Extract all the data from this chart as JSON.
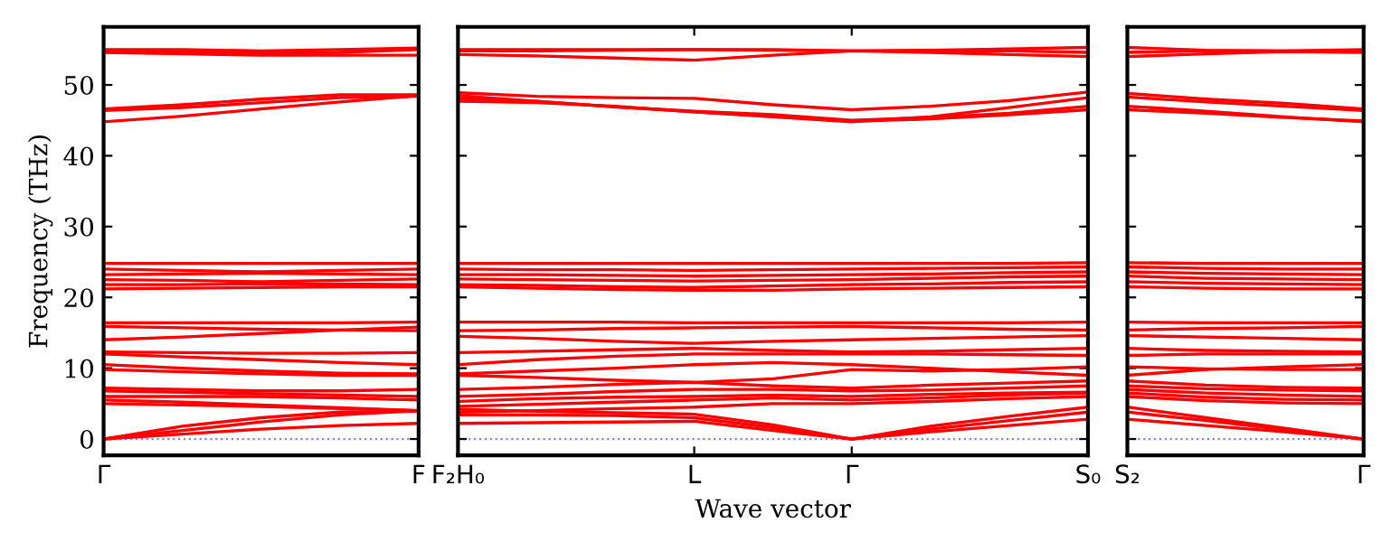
{
  "chart_data": [
    {
      "type": "line",
      "ylabel": "Frequency (THz)",
      "ylim": [
        -2.3,
        58.2
      ],
      "yticks": [
        0,
        10,
        20,
        30,
        40,
        50
      ],
      "tick_labels": "xy",
      "categories": [
        "Γ",
        null,
        null,
        null,
        "F"
      ],
      "ref_lines": [
        {
          "axis": "y",
          "value": 0,
          "color": "#8080ff",
          "line_style": "dotted"
        }
      ],
      "series": [
        {
          "color": "#ff0000",
          "values": [
            55.0,
            55.0,
            54.8,
            55.0,
            55.2
          ]
        },
        {
          "color": "#ff0000",
          "values": [
            54.6,
            54.4,
            54.2,
            54.2,
            54.2
          ]
        },
        {
          "color": "#ff0000",
          "values": [
            54.8,
            54.7,
            54.5,
            54.6,
            55.0
          ]
        },
        {
          "color": "#ff0000",
          "values": [
            46.6,
            47.2,
            48.0,
            48.6,
            48.6
          ]
        },
        {
          "color": "#ff0000",
          "values": [
            46.4,
            46.8,
            47.5,
            48.2,
            48.4
          ]
        },
        {
          "color": "#ff0000",
          "values": [
            44.8,
            45.6,
            46.6,
            47.6,
            48.5
          ]
        },
        {
          "color": "#ff0000",
          "values": [
            24.8,
            24.8,
            24.8,
            24.8,
            24.8
          ]
        },
        {
          "color": "#ff0000",
          "values": [
            24.0,
            23.8,
            23.6,
            23.8,
            24.0
          ]
        },
        {
          "color": "#ff0000",
          "values": [
            23.2,
            23.3,
            23.4,
            23.3,
            23.2
          ]
        },
        {
          "color": "#ff0000",
          "values": [
            22.5,
            22.4,
            22.2,
            22.4,
            22.6
          ]
        },
        {
          "color": "#ff0000",
          "values": [
            21.8,
            21.8,
            21.9,
            21.9,
            21.8
          ]
        },
        {
          "color": "#ff0000",
          "values": [
            21.2,
            21.3,
            21.4,
            21.5,
            21.5
          ]
        },
        {
          "color": "#ff0000",
          "values": [
            16.4,
            16.4,
            16.4,
            16.4,
            16.5
          ]
        },
        {
          "color": "#ff0000",
          "values": [
            15.9,
            15.7,
            15.5,
            15.4,
            15.3
          ]
        },
        {
          "color": "#ff0000",
          "values": [
            14.0,
            14.4,
            14.9,
            15.4,
            15.8
          ]
        },
        {
          "color": "#ff0000",
          "values": [
            12.3,
            12.2,
            12.1,
            12.1,
            12.2
          ]
        },
        {
          "color": "#ff0000",
          "values": [
            12.0,
            11.6,
            11.2,
            10.8,
            10.5
          ]
        },
        {
          "color": "#ff0000",
          "values": [
            10.5,
            10.0,
            9.6,
            9.3,
            9.2
          ]
        },
        {
          "color": "#ff0000",
          "values": [
            9.8,
            9.5,
            9.2,
            9.0,
            9.0
          ]
        },
        {
          "color": "#ff0000",
          "values": [
            7.2,
            7.0,
            6.8,
            6.8,
            7.0
          ]
        },
        {
          "color": "#ff0000",
          "values": [
            6.8,
            6.6,
            6.4,
            6.2,
            6.0
          ]
        },
        {
          "color": "#ff0000",
          "values": [
            6.0,
            6.0,
            6.0,
            5.8,
            5.5
          ]
        },
        {
          "color": "#ff0000",
          "values": [
            5.5,
            5.2,
            4.8,
            4.4,
            4.0
          ]
        },
        {
          "color": "#ff0000",
          "values": [
            5.0,
            4.8,
            4.6,
            4.3,
            4.0
          ]
        },
        {
          "color": "#ff0000",
          "values": [
            0,
            1.2,
            2.4,
            3.4,
            4.0
          ]
        },
        {
          "color": "#ff0000",
          "values": [
            0,
            1.8,
            3.0,
            3.8,
            3.9
          ]
        },
        {
          "color": "#ff0000",
          "values": [
            0,
            0.7,
            1.4,
            1.9,
            2.2
          ]
        }
      ]
    },
    {
      "type": "line",
      "xlabel": "Wave vector",
      "ylim": [
        -2.3,
        58.2
      ],
      "yticks": [
        0,
        10,
        20,
        30,
        40,
        50
      ],
      "tick_labels": "x",
      "categories": [
        "F₂H₀",
        null,
        null,
        "L",
        null,
        "Γ",
        null,
        null,
        "S₀"
      ],
      "ref_lines": [
        {
          "axis": "y",
          "value": 0,
          "color": "#8080ff",
          "line_style": "dotted"
        }
      ],
      "series": [
        {
          "color": "#ff0000",
          "values": [
            55.0,
            55.0,
            55.0,
            55.0,
            55.0,
            54.8,
            54.9,
            55.1,
            55.3
          ]
        },
        {
          "color": "#ff0000",
          "values": [
            54.3,
            54.1,
            53.8,
            53.5,
            54.2,
            54.8,
            54.6,
            54.3,
            54.0
          ]
        },
        {
          "color": "#ff0000",
          "values": [
            54.8,
            54.8,
            54.9,
            55.0,
            54.9,
            54.8,
            54.8,
            54.8,
            54.6
          ]
        },
        {
          "color": "#ff0000",
          "values": [
            48.9,
            48.4,
            48.2,
            48.1,
            47.2,
            46.5,
            47.0,
            47.8,
            49.0
          ]
        },
        {
          "color": "#ff0000",
          "values": [
            48.1,
            47.7,
            46.9,
            46.2,
            45.5,
            44.8,
            45.5,
            46.8,
            48.2
          ]
        },
        {
          "color": "#ff0000",
          "values": [
            48.5,
            47.7,
            46.9,
            46.3,
            45.8,
            45.0,
            45.4,
            46.0,
            47.0
          ]
        },
        {
          "color": "#ff0000",
          "values": [
            47.7,
            47.5,
            47.0,
            46.2,
            45.6,
            44.9,
            45.2,
            45.8,
            46.5
          ]
        },
        {
          "color": "#ff0000",
          "values": [
            24.8,
            24.8,
            24.8,
            24.8,
            24.8,
            24.8,
            24.8,
            24.8,
            24.9
          ]
        },
        {
          "color": "#ff0000",
          "values": [
            24.0,
            23.9,
            23.9,
            23.8,
            23.9,
            24.0,
            24.1,
            24.2,
            24.3
          ]
        },
        {
          "color": "#ff0000",
          "values": [
            23.2,
            23.2,
            23.1,
            23.0,
            23.1,
            23.2,
            23.3,
            23.5,
            23.6
          ]
        },
        {
          "color": "#ff0000",
          "values": [
            22.6,
            22.5,
            22.4,
            22.3,
            22.4,
            22.5,
            22.7,
            22.9,
            23.0
          ]
        },
        {
          "color": "#ff0000",
          "values": [
            21.8,
            21.7,
            21.5,
            21.4,
            21.6,
            21.8,
            21.9,
            22.1,
            22.2
          ]
        },
        {
          "color": "#ff0000",
          "values": [
            21.5,
            21.3,
            21.1,
            21.0,
            21.0,
            21.2,
            21.3,
            21.4,
            21.5
          ]
        },
        {
          "color": "#ff0000",
          "values": [
            16.5,
            16.5,
            16.5,
            16.4,
            16.4,
            16.4,
            16.4,
            16.4,
            16.5
          ]
        },
        {
          "color": "#ff0000",
          "values": [
            15.3,
            15.4,
            15.6,
            15.7,
            15.8,
            15.9,
            15.7,
            15.5,
            15.4
          ]
        },
        {
          "color": "#ff0000",
          "values": [
            14.5,
            14.2,
            13.8,
            13.5,
            13.8,
            14.0,
            14.2,
            14.4,
            14.6
          ]
        },
        {
          "color": "#ff0000",
          "values": [
            12.2,
            12.4,
            12.6,
            12.8,
            12.5,
            12.3,
            12.4,
            12.6,
            12.8
          ]
        },
        {
          "color": "#ff0000",
          "values": [
            10.5,
            11.2,
            11.7,
            12.0,
            12.0,
            12.0,
            12.0,
            11.9,
            11.8
          ]
        },
        {
          "color": "#ff0000",
          "values": [
            9.2,
            9.6,
            10.0,
            10.5,
            10.8,
            10.5,
            10.0,
            9.5,
            9.0
          ]
        },
        {
          "color": "#ff0000",
          "values": [
            9.0,
            8.7,
            8.3,
            8.0,
            8.5,
            9.8,
            9.6,
            9.8,
            10.2
          ]
        },
        {
          "color": "#ff0000",
          "values": [
            7.0,
            7.3,
            7.7,
            8.0,
            7.5,
            7.2,
            7.6,
            7.9,
            8.2
          ]
        },
        {
          "color": "#ff0000",
          "values": [
            6.0,
            6.3,
            6.7,
            7.0,
            7.0,
            6.8,
            6.9,
            7.2,
            7.5
          ]
        },
        {
          "color": "#ff0000",
          "values": [
            5.3,
            5.7,
            5.9,
            6.0,
            6.2,
            6.0,
            6.3,
            6.5,
            6.6
          ]
        },
        {
          "color": "#ff0000",
          "values": [
            4.6,
            4.9,
            5.2,
            5.5,
            5.8,
            5.5,
            5.8,
            6.2,
            6.5
          ]
        },
        {
          "color": "#ff0000",
          "values": [
            3.8,
            4.0,
            4.3,
            4.5,
            5.0,
            5.0,
            5.3,
            5.7,
            6.0
          ]
        },
        {
          "color": "#ff0000",
          "values": [
            4.2,
            3.9,
            3.7,
            3.5,
            2.0,
            0,
            1.8,
            3.2,
            4.5
          ]
        },
        {
          "color": "#ff0000",
          "values": [
            3.4,
            3.4,
            3.3,
            3.0,
            1.6,
            0,
            1.4,
            2.6,
            3.8
          ]
        },
        {
          "color": "#ff0000",
          "values": [
            2.2,
            2.3,
            2.4,
            2.5,
            1.2,
            0,
            1.0,
            1.9,
            2.8
          ]
        }
      ]
    },
    {
      "type": "line",
      "ylim": [
        -2.3,
        58.2
      ],
      "yticks": [
        0,
        10,
        20,
        30,
        40,
        50
      ],
      "tick_labels": "x",
      "categories": [
        "S₂",
        null,
        null,
        "Γ"
      ],
      "ref_lines": [
        {
          "axis": "y",
          "value": 0,
          "color": "#8080ff",
          "line_style": "dotted"
        }
      ],
      "series": [
        {
          "color": "#ff0000",
          "values": [
            55.3,
            54.9,
            54.8,
            55.0
          ]
        },
        {
          "color": "#ff0000",
          "values": [
            54.0,
            54.4,
            54.7,
            54.6
          ]
        },
        {
          "color": "#ff0000",
          "values": [
            54.6,
            54.8,
            54.8,
            54.8
          ]
        },
        {
          "color": "#ff0000",
          "values": [
            48.8,
            48.0,
            47.4,
            46.6
          ]
        },
        {
          "color": "#ff0000",
          "values": [
            48.3,
            47.6,
            47.0,
            46.4
          ]
        },
        {
          "color": "#ff0000",
          "values": [
            47.0,
            46.3,
            45.5,
            44.8
          ]
        },
        {
          "color": "#ff0000",
          "values": [
            46.5,
            46.0,
            45.4,
            44.9
          ]
        },
        {
          "color": "#ff0000",
          "values": [
            24.9,
            24.8,
            24.8,
            24.8
          ]
        },
        {
          "color": "#ff0000",
          "values": [
            24.3,
            24.1,
            24.0,
            24.0
          ]
        },
        {
          "color": "#ff0000",
          "values": [
            23.6,
            23.4,
            23.3,
            23.2
          ]
        },
        {
          "color": "#ff0000",
          "values": [
            23.0,
            22.7,
            22.6,
            22.5
          ]
        },
        {
          "color": "#ff0000",
          "values": [
            22.2,
            22.0,
            21.9,
            21.8
          ]
        },
        {
          "color": "#ff0000",
          "values": [
            21.5,
            21.3,
            21.2,
            21.2
          ]
        },
        {
          "color": "#ff0000",
          "values": [
            16.5,
            16.4,
            16.4,
            16.4
          ]
        },
        {
          "color": "#ff0000",
          "values": [
            15.4,
            15.6,
            15.7,
            15.9
          ]
        },
        {
          "color": "#ff0000",
          "values": [
            14.6,
            14.4,
            14.2,
            14.0
          ]
        },
        {
          "color": "#ff0000",
          "values": [
            12.8,
            12.5,
            12.4,
            12.3
          ]
        },
        {
          "color": "#ff0000",
          "values": [
            11.8,
            12.0,
            12.0,
            12.0
          ]
        },
        {
          "color": "#ff0000",
          "values": [
            9.0,
            9.8,
            10.2,
            10.5
          ]
        },
        {
          "color": "#ff0000",
          "values": [
            10.2,
            9.9,
            9.8,
            9.8
          ]
        },
        {
          "color": "#ff0000",
          "values": [
            8.2,
            7.6,
            7.3,
            7.2
          ]
        },
        {
          "color": "#ff0000",
          "values": [
            7.5,
            7.1,
            6.9,
            6.8
          ]
        },
        {
          "color": "#ff0000",
          "values": [
            7.0,
            6.5,
            6.2,
            6.0
          ]
        },
        {
          "color": "#ff0000",
          "values": [
            6.5,
            5.9,
            5.6,
            5.5
          ]
        },
        {
          "color": "#ff0000",
          "values": [
            6.0,
            5.4,
            5.1,
            5.0
          ]
        },
        {
          "color": "#ff0000",
          "values": [
            4.5,
            3.0,
            1.5,
            0
          ]
        },
        {
          "color": "#ff0000",
          "values": [
            3.8,
            2.6,
            1.3,
            0
          ]
        },
        {
          "color": "#ff0000",
          "values": [
            2.8,
            1.9,
            1.0,
            0
          ]
        }
      ]
    }
  ]
}
